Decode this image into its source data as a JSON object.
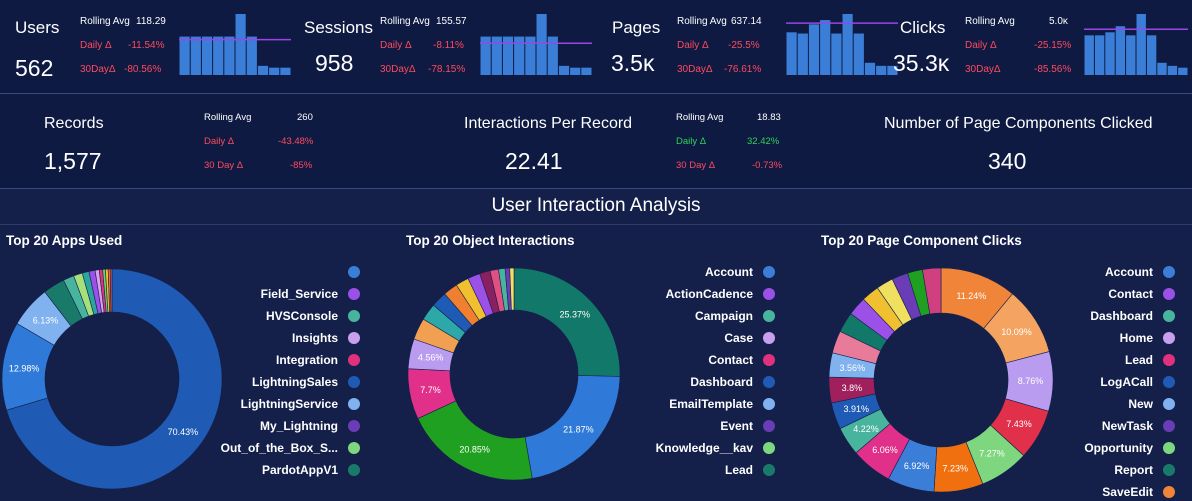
{
  "kpis": [
    {
      "name": "Users",
      "value": "562",
      "rolling_label": "Rolling Avg",
      "rolling_value": "118.29",
      "daily_label": "Daily Δ",
      "daily_value": "-11.54%",
      "month_label": "30DayΔ",
      "month_value": "-80.56%",
      "bars": [
        0.63,
        0.63,
        0.63,
        0.63,
        0.63,
        1.0,
        0.63,
        0.15,
        0.12,
        0.12
      ],
      "avg_line": 0.58
    },
    {
      "name": "Sessions",
      "value": "958",
      "rolling_label": "Rolling Avg",
      "rolling_value": "155.57",
      "daily_label": "Daily Δ",
      "daily_value": "-8.11%",
      "month_label": "30DayΔ",
      "month_value": "-78.15%",
      "bars": [
        0.63,
        0.63,
        0.63,
        0.63,
        0.63,
        1.0,
        0.63,
        0.15,
        0.12,
        0.12
      ],
      "avg_line": 0.52
    },
    {
      "name": "Pages",
      "value": "3.5ĸ",
      "rolling_label": "Rolling Avg",
      "rolling_value": "637.14",
      "daily_label": "Daily Δ",
      "daily_value": "-25.5%",
      "month_label": "30DayΔ",
      "month_value": "-76.61%",
      "bars": [
        0.7,
        0.68,
        0.83,
        0.9,
        0.68,
        1.0,
        0.68,
        0.2,
        0.15,
        0.15
      ],
      "avg_line": 0.85
    },
    {
      "name": "Clicks",
      "value": "35.3ĸ",
      "rolling_label": "Rolling Avg",
      "rolling_value": "5.0ĸ",
      "daily_label": "Daily Δ",
      "daily_value": "-25.15%",
      "month_label": "30DayΔ",
      "month_value": "-85.56%",
      "bars": [
        0.65,
        0.65,
        0.7,
        0.8,
        0.65,
        1.0,
        0.65,
        0.2,
        0.15,
        0.12
      ],
      "avg_line": 0.75
    }
  ],
  "records": [
    {
      "name": "Records",
      "value": "1,577",
      "rolling_label": "Rolling Avg",
      "rolling_value": "260",
      "daily_label": "Daily Δ",
      "daily_value": "-43.48%",
      "month_label": "30 Day Δ",
      "month_value": "-85%"
    },
    {
      "name": "Interactions Per Record",
      "value": "22.41",
      "rolling_label": "Rolling Avg",
      "rolling_value": "18.83",
      "daily_label": "Daily Δ",
      "daily_value": "32.42%",
      "month_label": "30 Day Δ",
      "month_value": "-0.73%"
    },
    {
      "name": "Number of Page Components Clicked",
      "value": "340"
    }
  ],
  "section_title": "User Interaction Analysis",
  "colors": {
    "bar": "#3a7ed8",
    "avg_line": "#9b45e8",
    "negative": "#ff4b5c",
    "positive": "#30d158"
  },
  "chart_data": [
    {
      "type": "pie",
      "title": "Top 20 Apps Used",
      "slices": [
        {
          "value": 70.43,
          "color": "#1f5bb5",
          "label": "70.43%"
        },
        {
          "value": 12.98,
          "color": "#2f7ad8",
          "label": "12.98%"
        },
        {
          "value": 6.13,
          "color": "#7fb2ee",
          "label": "6.13%"
        },
        {
          "value": 3.2,
          "color": "#1a7a6a",
          "label": ""
        },
        {
          "value": 1.6,
          "color": "#48b49e",
          "label": ""
        },
        {
          "value": 1.3,
          "color": "#a6e07a",
          "label": ""
        },
        {
          "value": 1.0,
          "color": "#2aa5a0",
          "label": ""
        },
        {
          "value": 0.9,
          "color": "#9b50e8",
          "label": ""
        },
        {
          "value": 0.6,
          "color": "#d8a0f0",
          "label": ""
        },
        {
          "value": 0.5,
          "color": "#e0307e",
          "label": ""
        },
        {
          "value": 0.4,
          "color": "#66d466",
          "label": ""
        },
        {
          "value": 0.4,
          "color": "#f0c030",
          "label": ""
        },
        {
          "value": 0.3,
          "color": "#f07030",
          "label": ""
        },
        {
          "value": 0.26,
          "color": "#e05050",
          "label": ""
        }
      ],
      "legend": [
        {
          "label": "",
          "color": "#3a7ed8"
        },
        {
          "label": "Field_Service",
          "color": "#9b50e8"
        },
        {
          "label": "HVSConsole",
          "color": "#48b49e"
        },
        {
          "label": "Insights",
          "color": "#c9a0f0"
        },
        {
          "label": "Integration",
          "color": "#e0307e"
        },
        {
          "label": "LightningSales",
          "color": "#1f5bb5"
        },
        {
          "label": "LightningService",
          "color": "#7fb2ee"
        },
        {
          "label": "My_Lightning",
          "color": "#6a3cb5"
        },
        {
          "label": "Out_of_the_Box_S...",
          "color": "#7ed67e"
        },
        {
          "label": "PardotAppV1",
          "color": "#1a7a6a"
        }
      ]
    },
    {
      "type": "pie",
      "title": "Top 20 Object Interactions",
      "slices": [
        {
          "value": 25.37,
          "color": "#12786a",
          "label": "25.37%"
        },
        {
          "value": 21.87,
          "color": "#2f7ad8",
          "label": "21.87%"
        },
        {
          "value": 20.85,
          "color": "#20a020",
          "label": "20.85%"
        },
        {
          "value": 7.7,
          "color": "#e0308a",
          "label": "7.7%"
        },
        {
          "value": 4.56,
          "color": "#b99cf0",
          "label": "4.56%"
        },
        {
          "value": 3.3,
          "color": "#f0a050",
          "label": ""
        },
        {
          "value": 2.6,
          "color": "#2da8a8",
          "label": ""
        },
        {
          "value": 2.4,
          "color": "#1f5bb5",
          "label": ""
        },
        {
          "value": 2.2,
          "color": "#f07f30",
          "label": ""
        },
        {
          "value": 2.0,
          "color": "#f0c030",
          "label": ""
        },
        {
          "value": 1.9,
          "color": "#9b50e8",
          "label": ""
        },
        {
          "value": 1.6,
          "color": "#8a2060",
          "label": ""
        },
        {
          "value": 1.3,
          "color": "#e05080",
          "label": ""
        },
        {
          "value": 1.0,
          "color": "#48b49e",
          "label": ""
        },
        {
          "value": 0.7,
          "color": "#6a3cb5",
          "label": ""
        },
        {
          "value": 0.64,
          "color": "#f0e060",
          "label": ""
        }
      ],
      "legend": [
        {
          "label": "Account",
          "color": "#3a7ed8"
        },
        {
          "label": "ActionCadence",
          "color": "#9b50e8"
        },
        {
          "label": "Campaign",
          "color": "#48b49e"
        },
        {
          "label": "Case",
          "color": "#c9a0f0"
        },
        {
          "label": "Contact",
          "color": "#e0307e"
        },
        {
          "label": "Dashboard",
          "color": "#1f5bb5"
        },
        {
          "label": "EmailTemplate",
          "color": "#7fb2ee"
        },
        {
          "label": "Event",
          "color": "#6a3cb5"
        },
        {
          "label": "Knowledge__kav",
          "color": "#7ed67e"
        },
        {
          "label": "Lead",
          "color": "#1a7a6a"
        }
      ]
    },
    {
      "type": "pie",
      "title": "Top 20 Page Component Clicks",
      "slices": [
        {
          "value": 11.24,
          "color": "#f0853a",
          "label": "11.24%"
        },
        {
          "value": 10.09,
          "color": "#f4a460",
          "label": "10.09%"
        },
        {
          "value": 8.76,
          "color": "#b99cf0",
          "label": "8.76%"
        },
        {
          "value": 7.43,
          "color": "#e0304a",
          "label": "7.43%"
        },
        {
          "value": 7.27,
          "color": "#7ed67e",
          "label": "7.27%"
        },
        {
          "value": 7.23,
          "color": "#f07010",
          "label": "7.23%"
        },
        {
          "value": 6.92,
          "color": "#3a7ed8",
          "label": "6.92%"
        },
        {
          "value": 6.06,
          "color": "#e0308a",
          "label": "6.06%"
        },
        {
          "value": 4.22,
          "color": "#48b49e",
          "label": "4.22%"
        },
        {
          "value": 3.91,
          "color": "#1f5bb5",
          "label": "3.91%"
        },
        {
          "value": 3.8,
          "color": "#a0205e",
          "label": "3.8%"
        },
        {
          "value": 3.56,
          "color": "#7fb2ee",
          "label": "3.56%"
        },
        {
          "value": 3.3,
          "color": "#e87a9a",
          "label": ""
        },
        {
          "value": 3.0,
          "color": "#12786a",
          "label": ""
        },
        {
          "value": 2.8,
          "color": "#9b50e8",
          "label": ""
        },
        {
          "value": 2.6,
          "color": "#f0c030",
          "label": ""
        },
        {
          "value": 2.5,
          "color": "#f0e060",
          "label": ""
        },
        {
          "value": 2.4,
          "color": "#6a3cb5",
          "label": ""
        },
        {
          "value": 2.2,
          "color": "#20a020",
          "label": ""
        },
        {
          "value": 2.71,
          "color": "#d04080",
          "label": ""
        }
      ],
      "legend": [
        {
          "label": "Account",
          "color": "#3a7ed8"
        },
        {
          "label": "Contact",
          "color": "#9b50e8"
        },
        {
          "label": "Dashboard",
          "color": "#48b49e"
        },
        {
          "label": "Home",
          "color": "#c9a0f0"
        },
        {
          "label": "Lead",
          "color": "#e0307e"
        },
        {
          "label": "LogACall",
          "color": "#1f5bb5"
        },
        {
          "label": "New",
          "color": "#7fb2ee"
        },
        {
          "label": "NewTask",
          "color": "#6a3cb5"
        },
        {
          "label": "Opportunity",
          "color": "#7ed67e"
        },
        {
          "label": "Report",
          "color": "#1a7a6a"
        },
        {
          "label": "SaveEdit",
          "color": "#f0853a"
        }
      ]
    }
  ]
}
